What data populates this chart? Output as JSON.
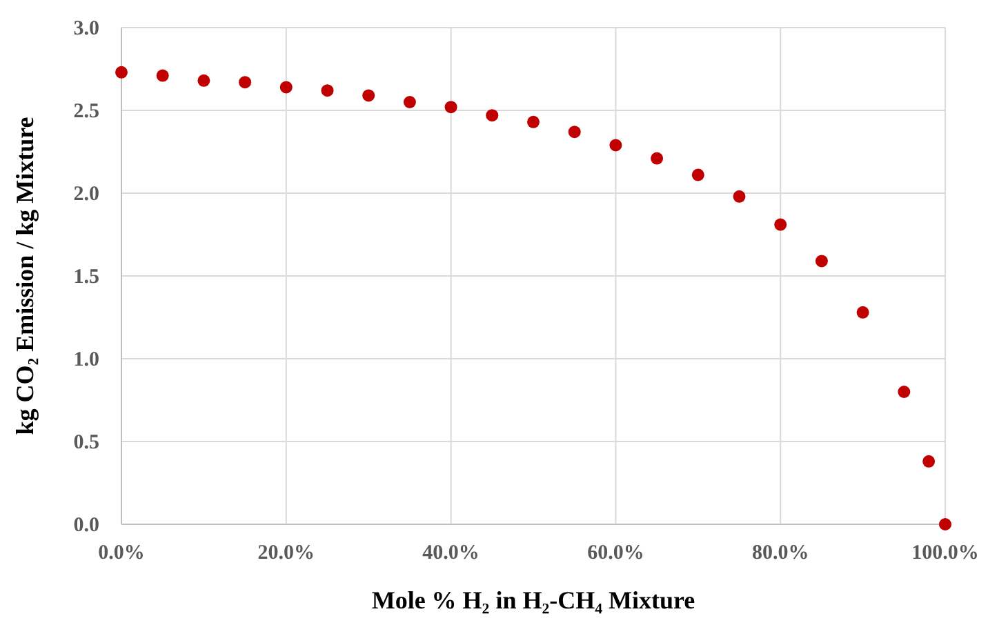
{
  "chart_data": {
    "type": "scatter",
    "xlabel": "Mole % H₂ in H₂-CH₄ Mixture",
    "ylabel": "kg CO₂ Emission / kg  Mixture",
    "x": [
      0,
      5,
      10,
      15,
      20,
      25,
      30,
      35,
      40,
      45,
      50,
      55,
      60,
      65,
      70,
      75,
      80,
      85,
      90,
      95,
      98,
      100
    ],
    "series": [
      {
        "color": "#c00000",
        "values": [
          2.73,
          2.71,
          2.68,
          2.67,
          2.64,
          2.62,
          2.59,
          2.55,
          2.52,
          2.47,
          2.43,
          2.37,
          2.29,
          2.21,
          2.11,
          1.98,
          1.81,
          1.59,
          1.28,
          0.8,
          0.38,
          0
        ]
      }
    ],
    "xlim": [
      0,
      100
    ],
    "xticks": [
      {
        "value": 0,
        "label": "0.0%"
      },
      {
        "value": 20,
        "label": "20.0%"
      },
      {
        "value": 40,
        "label": "40.0%"
      },
      {
        "value": 60,
        "label": "60.0%"
      },
      {
        "value": 80,
        "label": "80.0%"
      },
      {
        "value": 100,
        "label": "100.0%"
      }
    ],
    "ylim": [
      0,
      3
    ],
    "yticks": [
      {
        "value": 0,
        "label": "0.0"
      },
      {
        "value": 0.5,
        "label": "0.5"
      },
      {
        "value": 1,
        "label": "1.0"
      },
      {
        "value": 1.5,
        "label": "1.5"
      },
      {
        "value": 2,
        "label": "2.0"
      },
      {
        "value": 2.5,
        "label": "2.5"
      },
      {
        "value": 3,
        "label": "3.0"
      }
    ],
    "grid": true,
    "marker": "circle"
  }
}
